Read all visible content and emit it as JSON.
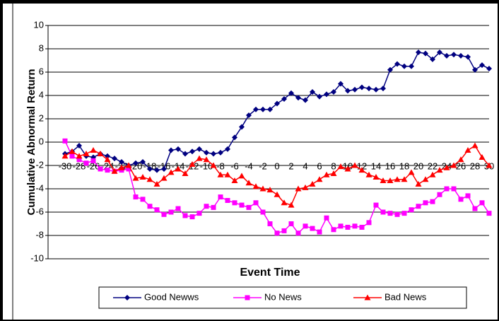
{
  "chart_data": {
    "type": "line",
    "ylabel": "Cumulative Abnormal Return",
    "xlabel": "Event Time",
    "x": [
      -30,
      -29,
      -28,
      -27,
      -26,
      -25,
      -24,
      -23,
      -22,
      -21,
      -20,
      -19,
      -18,
      -17,
      -16,
      -15,
      -14,
      -13,
      -12,
      -11,
      -10,
      -9,
      -8,
      -7,
      -6,
      -5,
      -4,
      -3,
      -2,
      -1,
      0,
      1,
      2,
      3,
      4,
      5,
      6,
      7,
      8,
      9,
      10,
      11,
      12,
      13,
      14,
      15,
      16,
      17,
      18,
      19,
      20,
      21,
      22,
      23,
      24,
      25,
      26,
      27,
      28,
      29,
      30
    ],
    "xlim": [
      -30,
      30
    ],
    "xticks": [
      -30,
      -28,
      -26,
      -24,
      -22,
      -20,
      -18,
      -16,
      -14,
      -12,
      -10,
      -8,
      -6,
      -4,
      -2,
      0,
      2,
      4,
      6,
      8,
      10,
      12,
      14,
      16,
      18,
      20,
      22,
      24,
      26,
      28,
      30
    ],
    "ylim": [
      -10,
      10
    ],
    "yticks": [
      -10,
      -8,
      -6,
      -4,
      -2,
      0,
      2,
      4,
      6,
      8,
      10
    ],
    "grid": true,
    "legend": "bottom",
    "series": [
      {
        "name": "Good Newws",
        "color": "#000080",
        "marker": "diamond",
        "values": [
          -1.0,
          -0.8,
          -0.3,
          -1.2,
          -1.3,
          -1.0,
          -1.2,
          -1.4,
          -1.7,
          -2.0,
          -1.8,
          -1.7,
          -2.3,
          -2.4,
          -2.3,
          -0.7,
          -0.6,
          -1.0,
          -0.8,
          -0.6,
          -0.9,
          -1.0,
          -0.9,
          -0.6,
          0.4,
          1.3,
          2.3,
          2.8,
          2.8,
          2.8,
          3.3,
          3.7,
          4.2,
          3.8,
          3.6,
          4.3,
          3.9,
          4.1,
          4.3,
          5.0,
          4.4,
          4.5,
          4.7,
          4.6,
          4.5,
          4.6,
          6.2,
          6.7,
          6.5,
          6.5,
          7.7,
          7.6,
          7.1,
          7.7,
          7.4,
          7.5,
          7.4,
          7.3,
          6.2,
          6.6,
          6.3
        ]
      },
      {
        "name": "No News",
        "color": "#ff00ff",
        "marker": "square",
        "values": [
          0.1,
          -1.2,
          -1.5,
          -1.8,
          -1.6,
          -2.3,
          -2.4,
          -2.5,
          -2.4,
          -2.3,
          -4.7,
          -4.9,
          -5.5,
          -5.8,
          -6.2,
          -6.0,
          -5.7,
          -6.3,
          -6.4,
          -6.1,
          -5.5,
          -5.6,
          -4.7,
          -5.0,
          -5.2,
          -5.4,
          -5.6,
          -5.2,
          -6.0,
          -7.0,
          -7.8,
          -7.6,
          -7.0,
          -7.8,
          -7.2,
          -7.4,
          -7.7,
          -6.5,
          -7.5,
          -7.2,
          -7.3,
          -7.2,
          -7.3,
          -6.9,
          -5.4,
          -6.0,
          -6.1,
          -6.2,
          -6.1,
          -5.8,
          -5.5,
          -5.2,
          -5.1,
          -4.5,
          -4.0,
          -4.0,
          -4.9,
          -4.6,
          -5.7,
          -5.2,
          -6.1
        ]
      },
      {
        "name": "Bad News",
        "color": "#ff0000",
        "marker": "triangle",
        "values": [
          -1.2,
          -0.8,
          -1.2,
          -1.0,
          -0.7,
          -1.0,
          -1.5,
          -2.5,
          -2.2,
          -2.0,
          -3.1,
          -3.0,
          -3.2,
          -3.6,
          -3.1,
          -2.6,
          -2.3,
          -2.7,
          -1.9,
          -1.4,
          -1.5,
          -2.0,
          -2.8,
          -2.8,
          -3.3,
          -2.9,
          -3.5,
          -3.8,
          -4.0,
          -4.1,
          -4.5,
          -5.2,
          -5.4,
          -4.0,
          -3.9,
          -3.6,
          -3.2,
          -2.8,
          -2.7,
          -2.1,
          -2.3,
          -2.0,
          -2.4,
          -2.8,
          -3.0,
          -3.3,
          -3.3,
          -3.2,
          -3.2,
          -2.6,
          -3.6,
          -3.2,
          -2.8,
          -2.4,
          -2.2,
          -2.0,
          -1.5,
          -0.7,
          -0.3,
          -1.3,
          -2.0
        ]
      }
    ]
  }
}
